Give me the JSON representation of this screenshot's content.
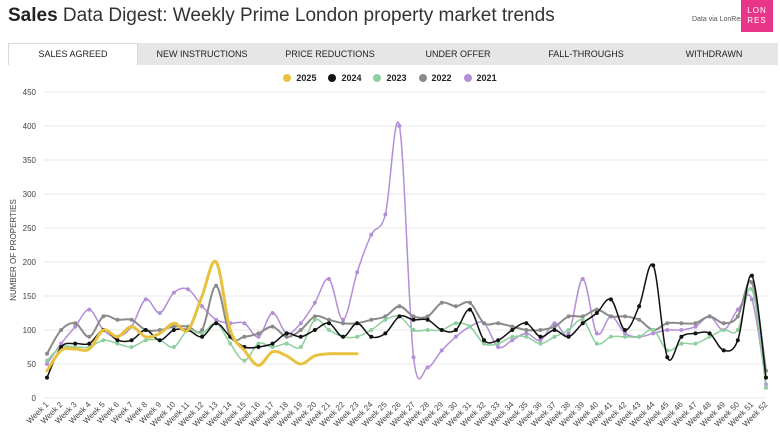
{
  "header": {
    "title_bold": "Sales",
    "title_rest": " Data Digest: Weekly Prime London property market trends",
    "data_via": "Data via LonRes",
    "logo_line1": "LON",
    "logo_line2": "RES"
  },
  "tabs": [
    {
      "label": "SALES AGREED",
      "active": true
    },
    {
      "label": "NEW INSTRUCTIONS",
      "active": false
    },
    {
      "label": "PRICE REDUCTIONS",
      "active": false
    },
    {
      "label": "UNDER OFFER",
      "active": false
    },
    {
      "label": "FALL-THROUGHS",
      "active": false
    },
    {
      "label": "WITHDRAWN",
      "active": false
    }
  ],
  "chart_data": {
    "type": "line",
    "title": "",
    "xlabel": "",
    "ylabel": "NUMBER OF PROPERTIES",
    "ylim": [
      0,
      450
    ],
    "yticks": [
      0,
      50,
      100,
      150,
      200,
      250,
      300,
      350,
      400,
      450
    ],
    "grid": true,
    "legend_position": "top-center",
    "categories": [
      "Week 1",
      "Week 2",
      "Week 3",
      "Week 4",
      "Week 5",
      "Week 6",
      "Week 7",
      "Week 8",
      "Week 9",
      "Week 10",
      "Week 11",
      "Week 12",
      "Week 13",
      "Week 14",
      "Week 15",
      "Week 16",
      "Week 17",
      "Week 18",
      "Week 19",
      "Week 20",
      "Week 21",
      "Week 22",
      "Week 23",
      "Week 24",
      "Week 25",
      "Week 26",
      "Week 27",
      "Week 28",
      "Week 29",
      "Week 30",
      "Week 31",
      "Week 32",
      "Week 33",
      "Week 34",
      "Week 35",
      "Week 36",
      "Week 37",
      "Week 38",
      "Week 39",
      "Week 40",
      "Week 41",
      "Week 42",
      "Week 43",
      "Week 44",
      "Week 45",
      "Week 46",
      "Week 47",
      "Week 48",
      "Week 49",
      "Week 50",
      "Week 51",
      "Week 52"
    ],
    "series": [
      {
        "name": "2025",
        "color": "#e8c23f",
        "width": 3,
        "values": [
          40,
          70,
          72,
          72,
          100,
          90,
          105,
          90,
          95,
          110,
          100,
          150,
          200,
          100,
          70,
          48,
          68,
          62,
          50,
          62,
          65,
          65,
          65,
          null,
          null,
          null,
          null,
          null,
          null,
          null,
          null,
          null,
          null,
          null,
          null,
          null,
          null,
          null,
          null,
          null,
          null,
          null,
          null,
          null,
          null,
          null,
          null,
          null,
          null,
          null,
          null,
          null
        ]
      },
      {
        "name": "2024",
        "color": "#111111",
        "width": 1.5,
        "values": [
          30,
          75,
          80,
          80,
          100,
          85,
          85,
          100,
          85,
          100,
          100,
          90,
          110,
          90,
          75,
          75,
          80,
          95,
          90,
          100,
          110,
          90,
          110,
          90,
          95,
          120,
          115,
          115,
          100,
          100,
          130,
          85,
          85,
          100,
          110,
          90,
          100,
          90,
          110,
          125,
          145,
          100,
          135,
          195,
          60,
          90,
          95,
          95,
          70,
          85,
          180,
          30
        ]
      },
      {
        "name": "2023",
        "color": "#8fcf9e",
        "width": 1.5,
        "values": [
          55,
          75,
          75,
          75,
          85,
          80,
          75,
          85,
          85,
          75,
          100,
          95,
          110,
          80,
          55,
          80,
          75,
          80,
          75,
          115,
          100,
          90,
          90,
          100,
          115,
          120,
          100,
          100,
          100,
          110,
          105,
          80,
          80,
          90,
          90,
          80,
          90,
          100,
          115,
          80,
          90,
          90,
          90,
          100,
          70,
          80,
          80,
          90,
          100,
          100,
          160,
          15
        ]
      },
      {
        "name": "2022",
        "color": "#8a8a8a",
        "width": 2,
        "values": [
          65,
          100,
          110,
          90,
          120,
          115,
          115,
          100,
          100,
          105,
          105,
          100,
          165,
          90,
          90,
          95,
          105,
          90,
          100,
          120,
          115,
          110,
          110,
          115,
          120,
          135,
          120,
          120,
          140,
          135,
          140,
          110,
          110,
          105,
          100,
          100,
          105,
          120,
          120,
          130,
          120,
          120,
          115,
          100,
          110,
          110,
          110,
          120,
          110,
          120,
          170,
          40
        ]
      },
      {
        "name": "2021",
        "color": "#b48ed6",
        "width": 1.5,
        "values": [
          50,
          80,
          105,
          130,
          100,
          90,
          105,
          145,
          125,
          155,
          160,
          135,
          115,
          110,
          110,
          90,
          125,
          95,
          110,
          140,
          175,
          115,
          185,
          240,
          270,
          400,
          60,
          45,
          70,
          90,
          105,
          110,
          75,
          85,
          95,
          85,
          110,
          95,
          175,
          95,
          120,
          95,
          90,
          95,
          100,
          100,
          105,
          120,
          100,
          130,
          145,
          20
        ]
      }
    ]
  }
}
